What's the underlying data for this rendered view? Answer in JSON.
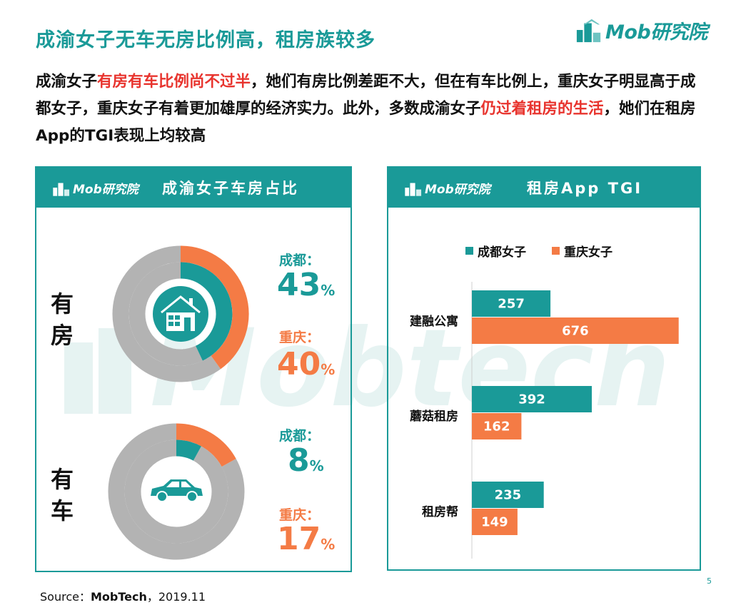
{
  "header": {
    "title": "成渝女子无车无房比例高，租房族较多",
    "logo_text": "Mob研究院"
  },
  "summary": {
    "part1": "成渝女子",
    "highlight1": "有房有车比例尚不过半",
    "part2": "，她们有房比例差距不大，但在有车比例上，重庆女子明显高于成都女子，重庆女子有着更加雄厚的经济实力。此外，多数成渝女子",
    "highlight2": "仍过着租房的生活",
    "part3": "，她们在租房App的TGI表现上均较高"
  },
  "watermark": "Mobtech",
  "colors": {
    "teal": "#1a9a98",
    "orange": "#f47b45",
    "gray": "#b3b3b3",
    "red": "#e8342e"
  },
  "left_panel": {
    "logo_text": "Mob研究院",
    "title": "成渝女子车房占比",
    "house": {
      "label_line1": "有",
      "label_line2": "房",
      "chengdu_label": "成都：",
      "chengdu_value": "43",
      "chengdu_pct": 43,
      "chongqing_label": "重庆：",
      "chongqing_value": "40",
      "chongqing_pct": 40,
      "unit": "%",
      "icon": "house-icon"
    },
    "car": {
      "label_line1": "有",
      "label_line2": "车",
      "chengdu_label": "成都：",
      "chengdu_value": "8",
      "chengdu_pct": 8,
      "chongqing_label": "重庆：",
      "chongqing_value": "17",
      "chongqing_pct": 17,
      "unit": "%",
      "icon": "car-icon"
    }
  },
  "right_panel": {
    "logo_text": "Mob研究院",
    "title": "租房App TGI"
  },
  "chart_data": {
    "type": "bar",
    "orientation": "horizontal",
    "title": "租房App TGI",
    "categories": [
      "建融公寓",
      "蘑菇租房",
      "租房帮"
    ],
    "series": [
      {
        "name": "成都女子",
        "values": [
          257,
          392,
          235
        ],
        "color": "#1a9a98"
      },
      {
        "name": "重庆女子",
        "values": [
          676,
          162,
          149
        ],
        "color": "#f47b45"
      }
    ],
    "xlim": [
      0,
      700
    ],
    "legend": "top"
  },
  "footer": {
    "source_prefix": "Source：",
    "source_name": "MobTech",
    "source_date": "，2019.11",
    "page": "5"
  }
}
